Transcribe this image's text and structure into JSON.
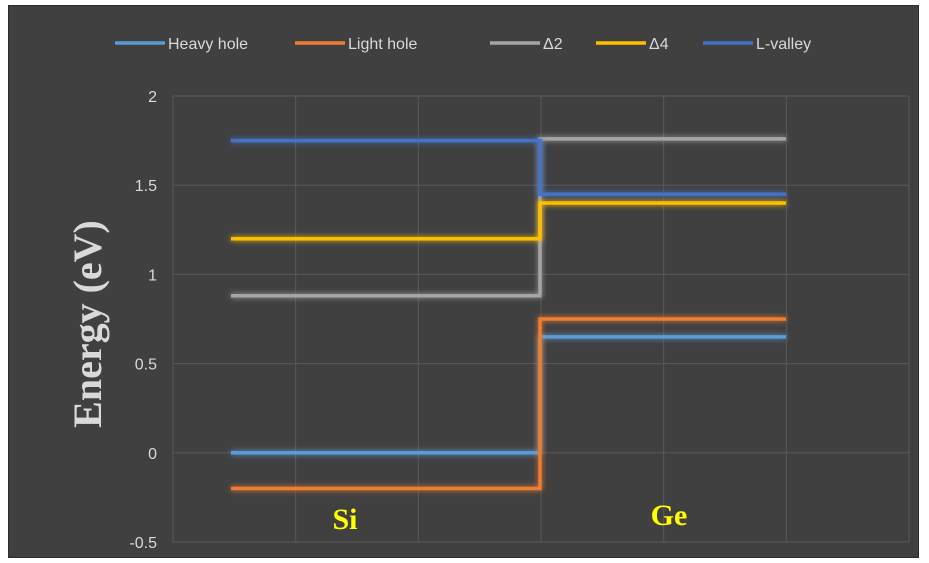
{
  "chart_data": {
    "type": "line",
    "title": "",
    "xlabel": "",
    "ylabel": "Energy (eV)",
    "ylim": [
      -0.5,
      2
    ],
    "yticks": [
      "2",
      "1.5",
      "1",
      "0.5",
      "0",
      "-0.5"
    ],
    "ytick_values": [
      2,
      1.5,
      1,
      0.5,
      0,
      -0.5
    ],
    "grid": true,
    "legend_position": "top",
    "region_labels": [
      "Si",
      "Ge"
    ],
    "series": [
      {
        "name": "Heavy hole",
        "color": "#5b9bd5",
        "si": 0.0,
        "ge": 0.65
      },
      {
        "name": "Light hole",
        "color": "#ed7d31",
        "si": -0.2,
        "ge": 0.75
      },
      {
        "name": "Δ2",
        "color": "#a5a5a5",
        "si": 0.88,
        "ge": 1.76
      },
      {
        "name": "Δ4",
        "color": "#ffc000",
        "si": 1.2,
        "ge": 1.4
      },
      {
        "name": "L-valley",
        "color": "#4472c4",
        "si": 1.75,
        "ge": 1.45
      }
    ]
  }
}
